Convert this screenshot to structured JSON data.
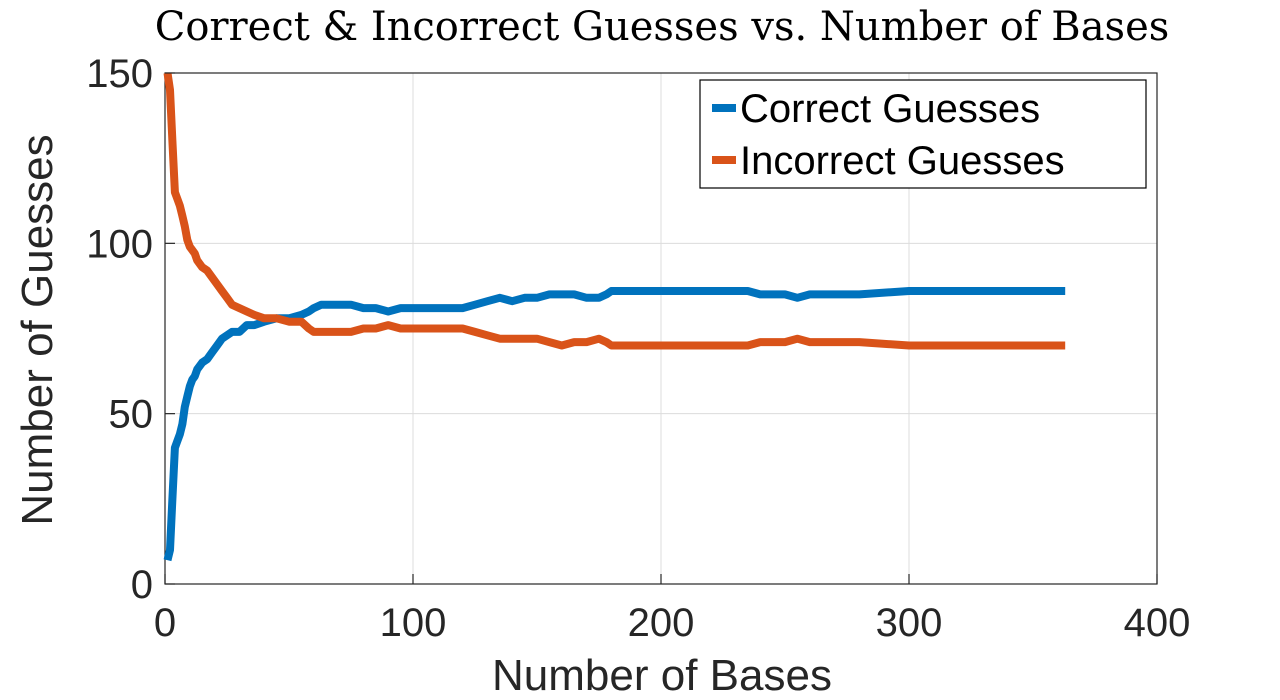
{
  "chart_data": {
    "type": "line",
    "title": "Correct & Incorrect Guesses vs. Number of Bases",
    "xlabel": "Number of Bases",
    "ylabel": "Number of Guesses",
    "xlim": [
      0,
      400
    ],
    "ylim": [
      0,
      150
    ],
    "xticks": [
      0,
      100,
      200,
      300,
      400
    ],
    "yticks": [
      0,
      50,
      100,
      150
    ],
    "xtick_labels": [
      "0",
      "100",
      "200",
      "300",
      "400"
    ],
    "ytick_labels": [
      "0",
      "50",
      "100",
      "150"
    ],
    "grid": true,
    "legend_position": "top-right",
    "series": [
      {
        "name": "Correct Guesses",
        "color": "#0072BD",
        "x": [
          1,
          2,
          3,
          4,
          5,
          6,
          7,
          8,
          9,
          10,
          11,
          12,
          13,
          15,
          17,
          19,
          21,
          23,
          25,
          27,
          30,
          33,
          36,
          40,
          45,
          50,
          55,
          58,
          60,
          63,
          70,
          75,
          80,
          85,
          90,
          95,
          100,
          110,
          120,
          125,
          130,
          135,
          140,
          145,
          150,
          155,
          160,
          165,
          170,
          175,
          178,
          180,
          190,
          200,
          210,
          220,
          230,
          235,
          240,
          250,
          255,
          260,
          270,
          280,
          300,
          320,
          340,
          363
        ],
        "y": [
          7,
          10,
          25,
          40,
          42,
          44,
          47,
          52,
          55,
          58,
          60,
          61,
          63,
          65,
          66,
          68,
          70,
          72,
          73,
          74,
          74,
          76,
          76,
          77,
          78,
          78,
          79,
          80,
          81,
          82,
          82,
          82,
          81,
          81,
          80,
          81,
          81,
          81,
          81,
          82,
          83,
          84,
          83,
          84,
          84,
          85,
          85,
          85,
          84,
          84,
          85,
          86,
          86,
          86,
          86,
          86,
          86,
          86,
          85,
          85,
          84,
          85,
          85,
          85,
          86,
          86,
          86,
          86
        ]
      },
      {
        "name": "Incorrect Guesses",
        "color": "#D95319",
        "x": [
          1,
          2,
          3,
          4,
          5,
          6,
          7,
          8,
          9,
          10,
          11,
          12,
          13,
          15,
          17,
          19,
          21,
          23,
          25,
          27,
          30,
          33,
          36,
          40,
          45,
          50,
          55,
          58,
          60,
          63,
          70,
          75,
          80,
          85,
          90,
          95,
          100,
          110,
          120,
          125,
          130,
          135,
          140,
          145,
          150,
          155,
          160,
          165,
          170,
          175,
          178,
          180,
          190,
          200,
          210,
          220,
          230,
          235,
          240,
          250,
          255,
          260,
          270,
          280,
          300,
          320,
          340,
          363
        ],
        "y": [
          150,
          145,
          130,
          115,
          113,
          111,
          108,
          105,
          101,
          99,
          98,
          97,
          95,
          93,
          92,
          90,
          88,
          86,
          84,
          82,
          81,
          80,
          79,
          78,
          78,
          77,
          77,
          75,
          74,
          74,
          74,
          74,
          75,
          75,
          76,
          75,
          75,
          75,
          75,
          74,
          73,
          72,
          72,
          72,
          72,
          71,
          70,
          71,
          71,
          72,
          71,
          70,
          70,
          70,
          70,
          70,
          70,
          70,
          71,
          71,
          72,
          71,
          71,
          71,
          70,
          70,
          70,
          70
        ]
      }
    ]
  }
}
